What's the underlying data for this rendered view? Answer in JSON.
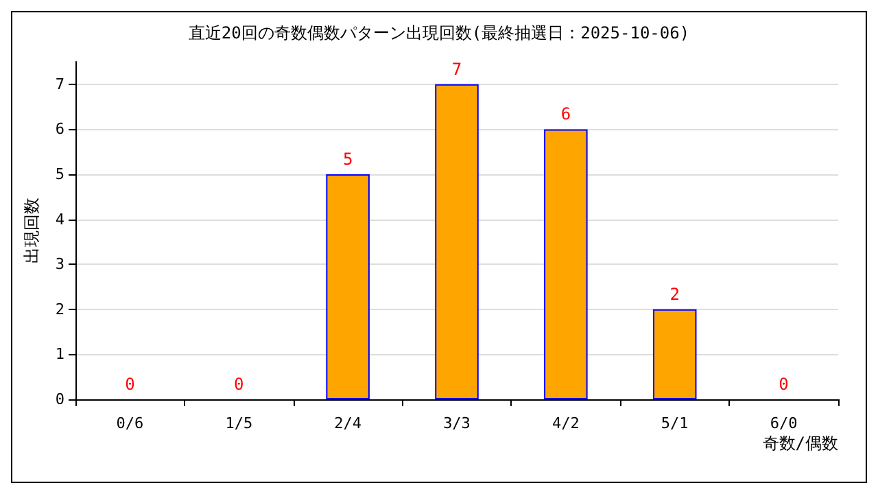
{
  "chart_data": {
    "type": "bar",
    "title": "直近20回の奇数偶数パターン出現回数(最終抽選日：2025-10-06)",
    "xlabel": "奇数/偶数",
    "ylabel": "出現回数",
    "categories": [
      "0/6",
      "1/5",
      "2/4",
      "3/3",
      "4/2",
      "5/1",
      "6/0"
    ],
    "values": [
      0,
      0,
      5,
      7,
      6,
      2,
      0
    ],
    "color": "#ffa500",
    "ylim": [
      0,
      7.5
    ],
    "yticks": [
      0,
      1,
      2,
      3,
      4,
      5,
      6,
      7
    ],
    "grid": "y",
    "data_labels": true
  }
}
